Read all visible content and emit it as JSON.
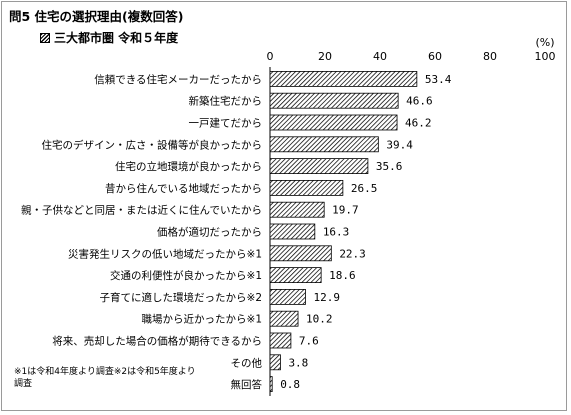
{
  "title": "問5 住宅の選択理由(複数回答)",
  "legend": "三大都市圏 令和５年度",
  "unit": "(%)",
  "footnote": "※1は令和4年度より調査※2は令和5年度より調査",
  "colors": {
    "bar_fill": "#ffffff",
    "hatch": "#000000"
  },
  "chart_data": {
    "type": "bar",
    "orientation": "horizontal",
    "title": "問5 住宅の選択理由(複数回答)",
    "xlabel": "(%)",
    "ylabel": "",
    "xlim": [
      0,
      100
    ],
    "ticks": [
      0,
      20,
      40,
      60,
      80,
      100
    ],
    "grid": false,
    "legend_position": "top-left",
    "categories": [
      "信頼できる住宅メーカーだったから",
      "新築住宅だから",
      "一戸建てだから",
      "住宅のデザイン・広さ・設備等が良かったから",
      "住宅の立地環境が良かったから",
      "昔から住んでいる地域だったから",
      "親・子供などと同居・または近くに住んでいたから",
      "価格が適切だったから",
      "災害発生リスクの低い地域だったから※1",
      "交通の利便性が良かったから※1",
      "子育てに適した環境だったから※2",
      "職場から近かったから※1",
      "将来、売却した場合の価格が期待できるから",
      "その他",
      "無回答"
    ],
    "series": [
      {
        "name": "三大都市圏 令和５年度",
        "values": [
          53.4,
          46.6,
          46.2,
          39.4,
          35.6,
          26.5,
          19.7,
          16.3,
          22.3,
          18.6,
          12.9,
          10.2,
          7.6,
          3.8,
          0.8
        ],
        "labels": [
          "53.4",
          "46.6",
          "46.2",
          "39.4",
          "35.6",
          "26.5",
          "19.7",
          "16.3",
          "22.3",
          "18.6",
          "12.9",
          "10.2",
          "7.6",
          "3.8",
          "0.8"
        ]
      }
    ]
  }
}
